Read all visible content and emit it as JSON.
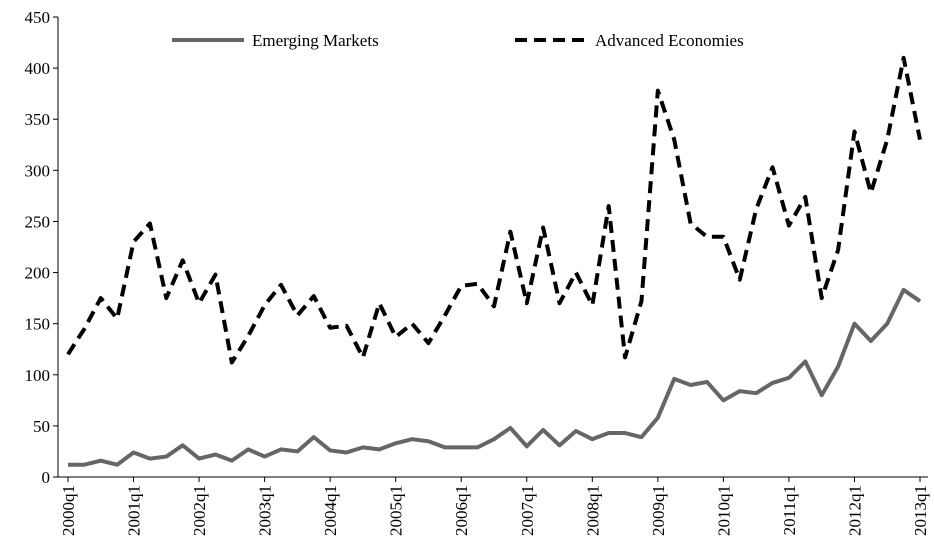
{
  "chart_data": {
    "type": "line",
    "categories": [
      "2000q1",
      null,
      null,
      null,
      "2001q1",
      null,
      null,
      null,
      "2002q1",
      null,
      null,
      null,
      "2003q1",
      null,
      null,
      null,
      "2004q1",
      null,
      null,
      null,
      "2005q1",
      null,
      null,
      null,
      "2006q1",
      null,
      null,
      null,
      "2007q1",
      null,
      null,
      null,
      "2008q1",
      null,
      null,
      null,
      "2009q1",
      null,
      null,
      null,
      "2010q1",
      null,
      null,
      null,
      "2011q1",
      null,
      null,
      null,
      "2012q1",
      null,
      null,
      null,
      "2013q1"
    ],
    "series": [
      {
        "name": "Emerging Markets",
        "color": "#666666",
        "dashed": false,
        "values": [
          12,
          12,
          16,
          12,
          24,
          18,
          20,
          31,
          18,
          22,
          16,
          27,
          20,
          27,
          25,
          39,
          26,
          24,
          29,
          27,
          33,
          37,
          35,
          29,
          29,
          29,
          37,
          48,
          30,
          46,
          31,
          45,
          37,
          43,
          43,
          39,
          58,
          96,
          90,
          93,
          75,
          84,
          82,
          92,
          97,
          113,
          80,
          108,
          150,
          133,
          150,
          183,
          172
        ]
      },
      {
        "name": "Advanced Economies",
        "color": "#000000",
        "dashed": true,
        "values": [
          120,
          145,
          175,
          155,
          230,
          248,
          175,
          212,
          170,
          198,
          112,
          138,
          168,
          188,
          158,
          177,
          146,
          148,
          117,
          170,
          137,
          150,
          131,
          158,
          187,
          189,
          167,
          240,
          170,
          244,
          170,
          200,
          168,
          265,
          117,
          172,
          378,
          330,
          248,
          235,
          235,
          193,
          262,
          303,
          246,
          274,
          175,
          222,
          338,
          278,
          330,
          410,
          330
        ]
      }
    ],
    "ylim": [
      0,
      450
    ],
    "yticks": [
      0,
      50,
      100,
      150,
      200,
      250,
      300,
      350,
      400,
      450
    ],
    "grid": false,
    "legend": "top"
  }
}
